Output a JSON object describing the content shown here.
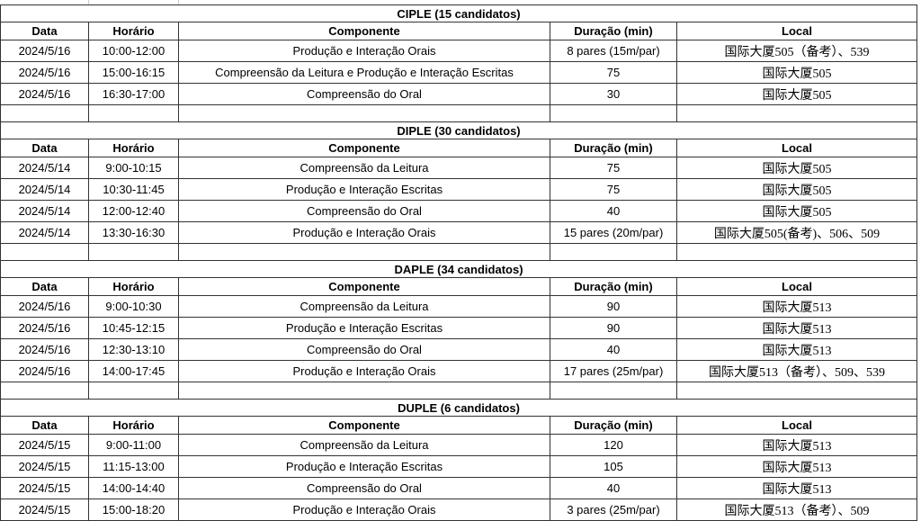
{
  "headers": [
    "Data",
    "Horário",
    "Componente",
    "Duração (min)",
    "Local"
  ],
  "sections": [
    {
      "title": "CIPLE (15 candidatos)",
      "rows": [
        [
          "2024/5/16",
          "10:00-12:00",
          "Produção e Interação Orais",
          "8 pares (15m/par)",
          "国际大厦505（备考）、539"
        ],
        [
          "2024/5/16",
          "15:00-16:15",
          "Compreensão da Leitura e Produção e Interação Escritas",
          "75",
          "国际大厦505"
        ],
        [
          "2024/5/16",
          "16:30-17:00",
          "Compreensão do Oral",
          "30",
          "国际大厦505"
        ]
      ]
    },
    {
      "title": "DIPLE (30 candidatos)",
      "rows": [
        [
          "2024/5/14",
          "9:00-10:15",
          "Compreensão da Leitura",
          "75",
          "国际大厦505"
        ],
        [
          "2024/5/14",
          "10:30-11:45",
          "Produção e Interação Escritas",
          "75",
          "国际大厦505"
        ],
        [
          "2024/5/14",
          "12:00-12:40",
          "Compreensão do Oral",
          "40",
          "国际大厦505"
        ],
        [
          "2024/5/14",
          "13:30-16:30",
          "Produção e Interação Orais",
          "15 pares (20m/par)",
          "国际大厦505(备考)、506、509"
        ]
      ]
    },
    {
      "title": "DAPLE (34 candidatos)",
      "rows": [
        [
          "2024/5/16",
          "9:00-10:30",
          "Compreensão da Leitura",
          "90",
          "国际大厦513"
        ],
        [
          "2024/5/16",
          "10:45-12:15",
          "Produção e Interação Escritas",
          "90",
          "国际大厦513"
        ],
        [
          "2024/5/16",
          "12:30-13:10",
          "Compreensão do Oral",
          "40",
          "国际大厦513"
        ],
        [
          "2024/5/16",
          "14:00-17:45",
          "Produção e Interação Orais",
          "17 pares (25m/par)",
          "国际大厦513（备考）、509、539"
        ]
      ]
    },
    {
      "title": "DUPLE (6 candidatos)",
      "rows": [
        [
          "2024/5/15",
          "9:00-11:00",
          "Compreensão da Leitura",
          "120",
          "国际大厦513"
        ],
        [
          "2024/5/15",
          "11:15-13:00",
          "Produção e Interação Escritas",
          "105",
          "国际大厦513"
        ],
        [
          "2024/5/15",
          "14:00-14:40",
          "Compreensão do Oral",
          "40",
          "国际大厦513"
        ],
        [
          "2024/5/15",
          "15:00-18:20",
          "Produção e Interação Orais",
          "3 pares (25m/par)",
          "国际大厦513（备考）、509"
        ]
      ]
    }
  ]
}
